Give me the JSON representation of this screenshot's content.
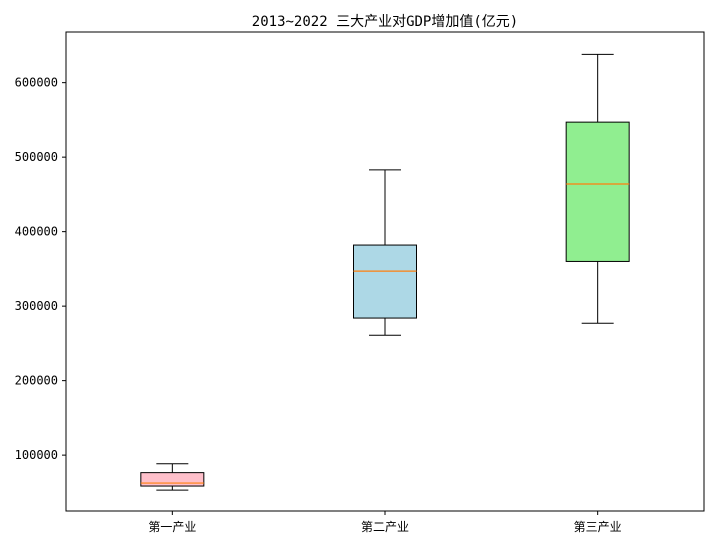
{
  "chart_data": {
    "type": "box",
    "title": "2013~2022 三大产业对GDP增加值(亿元)",
    "xlabel": "",
    "ylabel": "",
    "categories": [
      "第一产业",
      "第二产业",
      "第三产业"
    ],
    "ylim": [
      25000,
      668000
    ],
    "y_ticks": [
      100000,
      200000,
      300000,
      400000,
      500000,
      600000
    ],
    "y_tick_labels": [
      "100000",
      "200000",
      "300000",
      "400000",
      "500000",
      "600000"
    ],
    "grid": false,
    "median_color": "#ff7f0e",
    "boxes": [
      {
        "name": "第一产业",
        "whisker_low": 53000,
        "q1": 58500,
        "median": 62500,
        "q3": 76500,
        "whisker_high": 88500,
        "fill": "#ffc0cb"
      },
      {
        "name": "第二产业",
        "whisker_low": 261000,
        "q1": 284000,
        "median": 347000,
        "q3": 382000,
        "whisker_high": 483000,
        "fill": "#add8e6"
      },
      {
        "name": "第三产业",
        "whisker_low": 277000,
        "q1": 360000,
        "median": 464000,
        "q3": 547000,
        "whisker_high": 638000,
        "fill": "#90ee90"
      }
    ]
  }
}
